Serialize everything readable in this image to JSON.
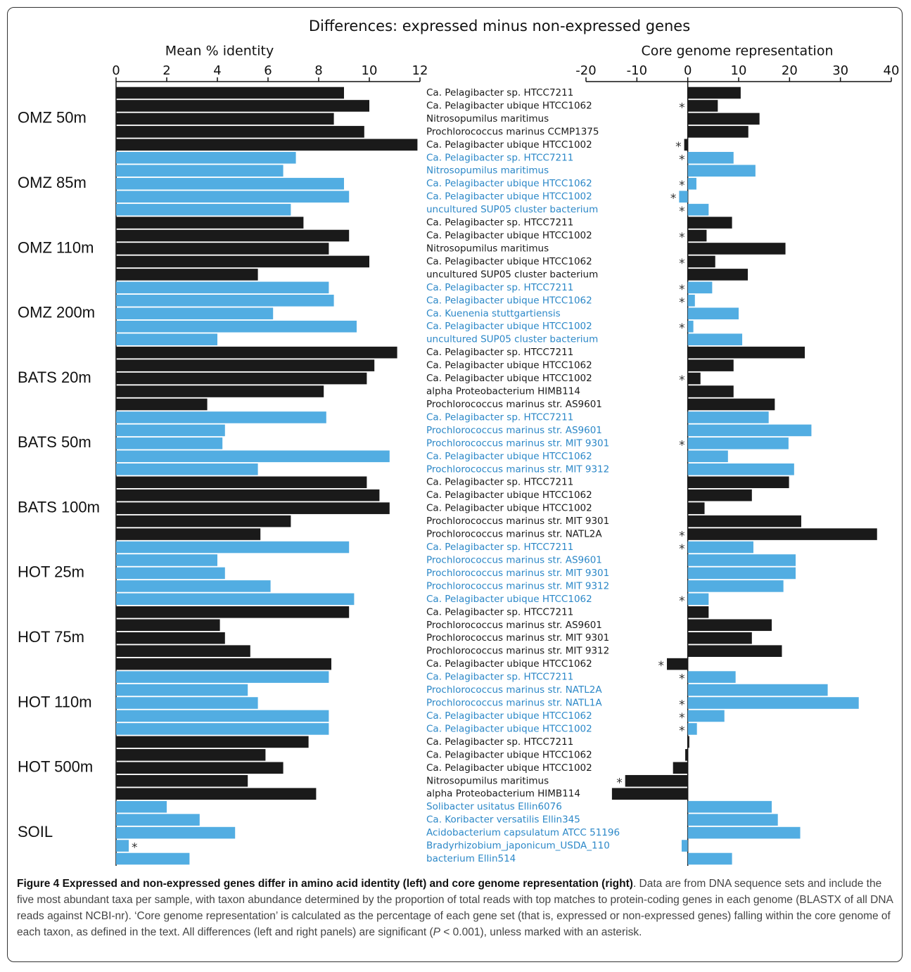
{
  "title": "Differences: expressed minus non-expressed genes",
  "chart_data": [
    {
      "type": "bar",
      "orientation": "horizontal",
      "xlabel": "Mean % identity",
      "xlim": [
        0,
        12
      ],
      "xticks": [
        0,
        2,
        4,
        6,
        8,
        10,
        12
      ],
      "categories": [
        "Ca. Pelagibacter sp. HTCC7211",
        "Ca. Pelagibacter ubique HTCC1062",
        "Nitrosopumilus maritimus",
        "Prochlorococcus marinus CCMP1375",
        "Ca. Pelagibacter ubique HTCC1002",
        "Ca. Pelagibacter sp. HTCC7211",
        "Nitrosopumilus maritimus",
        "Ca. Pelagibacter ubique HTCC1062",
        "Ca. Pelagibacter ubique HTCC1002",
        "uncultured SUP05 cluster bacterium",
        "Ca. Pelagibacter sp. HTCC7211",
        "Ca. Pelagibacter ubique HTCC1002",
        "Nitrosopumilus maritimus",
        "Ca. Pelagibacter ubique HTCC1062",
        "uncultured SUP05 cluster bacterium",
        "Ca. Pelagibacter sp. HTCC7211",
        "Ca. Pelagibacter ubique HTCC1062",
        "Ca. Kuenenia stuttgartiensis",
        "Ca. Pelagibacter ubique HTCC1002",
        "uncultured SUP05 cluster bacterium",
        "Ca. Pelagibacter sp. HTCC7211",
        "Ca. Pelagibacter ubique HTCC1062",
        "Ca. Pelagibacter ubique HTCC1002",
        "alpha Proteobacterium HIMB114",
        "Prochlorococcus marinus str. AS9601",
        "Ca. Pelagibacter sp. HTCC7211",
        "Prochlorococcus marinus str. AS9601",
        "Prochlorococcus marinus str. MIT 9301",
        "Ca. Pelagibacter ubique HTCC1062",
        "Prochlorococcus marinus str. MIT 9312",
        "Ca. Pelagibacter sp. HTCC7211",
        "Ca. Pelagibacter ubique HTCC1062",
        "Ca. Pelagibacter ubique HTCC1002",
        "Prochlorococcus marinus str. MIT 9301",
        "Prochlorococcus marinus str. NATL2A",
        "Ca. Pelagibacter sp. HTCC7211",
        "Prochlorococcus marinus str. AS9601",
        "Prochlorococcus marinus str. MIT 9301",
        "Prochlorococcus marinus str. MIT 9312",
        "Ca. Pelagibacter ubique HTCC1062",
        "Ca. Pelagibacter sp. HTCC7211",
        "Prochlorococcus marinus str. AS9601",
        "Prochlorococcus marinus str. MIT 9301",
        "Prochlorococcus marinus str. MIT 9312",
        "Ca. Pelagibacter ubique HTCC1062",
        "Ca. Pelagibacter sp. HTCC7211",
        "Prochlorococcus marinus str. NATL2A",
        "Prochlorococcus marinus str. NATL1A",
        "Ca. Pelagibacter ubique HTCC1062",
        "Ca. Pelagibacter ubique HTCC1002",
        "Ca. Pelagibacter sp. HTCC7211",
        "Ca. Pelagibacter ubique HTCC1062",
        "Ca. Pelagibacter ubique HTCC1002",
        "Nitrosopumilus maritimus",
        "alpha Proteobacterium HIMB114",
        "Solibacter usitatus Ellin6076",
        "Ca. Koribacter versatilis Ellin345",
        "Acidobacterium capsulatum ATCC 51196",
        "Bradyrhizobium_japonicum_USDA_110",
        "bacterium Ellin514"
      ],
      "values": [
        9.0,
        10.0,
        8.6,
        9.8,
        11.9,
        7.1,
        6.6,
        9.0,
        9.2,
        6.9,
        7.4,
        9.2,
        8.4,
        10.0,
        5.6,
        8.4,
        8.6,
        6.2,
        9.5,
        4.0,
        11.1,
        10.2,
        9.9,
        8.2,
        3.6,
        8.3,
        4.3,
        4.2,
        10.8,
        5.6,
        9.9,
        10.4,
        10.8,
        6.9,
        5.7,
        9.2,
        4.0,
        4.3,
        6.1,
        9.4,
        9.2,
        4.1,
        4.3,
        5.3,
        8.5,
        8.4,
        5.2,
        5.6,
        8.4,
        8.4,
        7.6,
        5.9,
        6.6,
        5.2,
        7.9,
        2.0,
        3.3,
        4.7,
        0.5,
        2.9
      ],
      "marker": "*",
      "marked": [
        58
      ]
    },
    {
      "type": "bar",
      "orientation": "horizontal",
      "xlabel": "Core genome representation",
      "xlim": [
        -20,
        40
      ],
      "xticks": [
        -20,
        -10,
        0,
        10,
        20,
        30,
        40
      ],
      "values": [
        10.4,
        5.9,
        14.1,
        11.9,
        -0.7,
        9.0,
        13.3,
        1.7,
        -1.7,
        4.1,
        8.7,
        3.7,
        19.2,
        5.4,
        11.8,
        4.8,
        1.4,
        10.0,
        1.1,
        10.7,
        23.0,
        9.0,
        2.5,
        9.0,
        17.1,
        15.9,
        24.3,
        19.8,
        7.9,
        20.9,
        19.9,
        12.6,
        3.3,
        22.3,
        37.2,
        12.9,
        21.2,
        21.2,
        18.8,
        4.1,
        4.1,
        16.5,
        12.6,
        18.5,
        -4.1,
        9.4,
        27.5,
        33.6,
        7.2,
        1.8,
        0.3,
        -0.5,
        -2.9,
        -12.3,
        -14.9,
        16.5,
        17.7,
        22.1,
        -1.2,
        8.7
      ],
      "marker": "*",
      "marked": [
        1,
        4,
        5,
        7,
        8,
        9,
        11,
        13,
        15,
        16,
        18,
        22,
        27,
        34,
        35,
        39,
        44,
        45,
        47,
        48,
        49,
        53
      ]
    }
  ],
  "groups": [
    {
      "name": "OMZ 50m",
      "color": "#1a1a1a",
      "text_color": "#1a1a1a"
    },
    {
      "name": "OMZ 85m",
      "color": "#52ade2",
      "text_color": "#2c88c8"
    },
    {
      "name": "OMZ 110m",
      "color": "#1a1a1a",
      "text_color": "#1a1a1a"
    },
    {
      "name": "OMZ 200m",
      "color": "#52ade2",
      "text_color": "#2c88c8"
    },
    {
      "name": "BATS 20m",
      "color": "#1a1a1a",
      "text_color": "#1a1a1a"
    },
    {
      "name": "BATS 50m",
      "color": "#52ade2",
      "text_color": "#2c88c8"
    },
    {
      "name": "BATS 100m",
      "color": "#1a1a1a",
      "text_color": "#1a1a1a"
    },
    {
      "name": "HOT 25m",
      "color": "#52ade2",
      "text_color": "#2c88c8"
    },
    {
      "name": "HOT 75m",
      "color": "#1a1a1a",
      "text_color": "#1a1a1a"
    },
    {
      "name": "HOT 110m",
      "color": "#52ade2",
      "text_color": "#2c88c8"
    },
    {
      "name": "HOT 500m",
      "color": "#1a1a1a",
      "text_color": "#1a1a1a"
    },
    {
      "name": "SOIL",
      "color": "#52ade2",
      "text_color": "#2c88c8"
    }
  ],
  "caption": {
    "heading": "Figure 4 Expressed and non-expressed genes differ in amino acid identity (left) and core genome representation (right)",
    "body_before": ". Data are from DNA sequence sets and include the five most abundant taxa per sample, with taxon abundance determined by the proportion of total reads with top matches to protein-coding genes in each genome (BLASTX of all DNA reads against NCBI-nr). ‘Core genome representation’ is calculated as the percentage of each gene set (that is, expressed or non-expressed genes) falling within the core genome of each taxon, as defined in the text. All differences (left and right panels) are significant (",
    "italic": "P",
    "body_after": " < 0.001), unless marked with an asterisk."
  }
}
